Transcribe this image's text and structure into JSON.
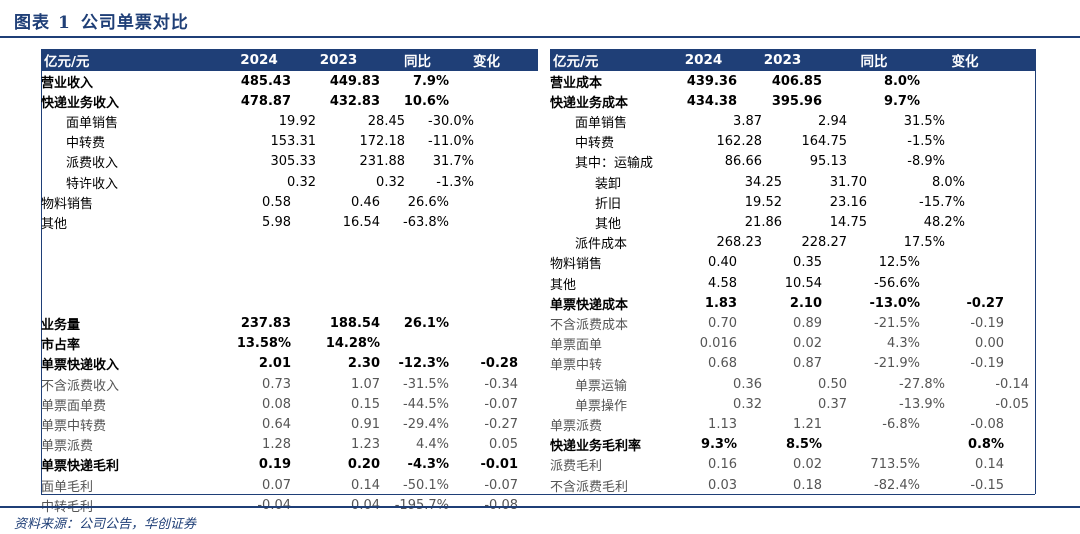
{
  "title": {
    "chart_no": "图表",
    "num": "1",
    "text": "公司单票对比"
  },
  "header_left": [
    "亿元/元",
    "2024",
    "2023",
    "同比",
    "变化"
  ],
  "header_right": [
    "亿元/元",
    "2024",
    "2023",
    "同比",
    "变化"
  ],
  "left_rows": [
    {
      "label": "营业收入",
      "v2024": "485.43",
      "v2023": "449.83",
      "yoy": "7.9%",
      "chg": "",
      "style": "b"
    },
    {
      "label": "快递业务收入",
      "v2024": "478.87",
      "v2023": "432.83",
      "yoy": "10.6%",
      "chg": "",
      "style": "b"
    },
    {
      "label": "面单销售",
      "v2024": "19.92",
      "v2023": "28.45",
      "yoy": "-30.0%",
      "chg": "",
      "style": "i1"
    },
    {
      "label": "中转费",
      "v2024": "153.31",
      "v2023": "172.18",
      "yoy": "-11.0%",
      "chg": "",
      "style": "i1"
    },
    {
      "label": "派费收入",
      "v2024": "305.33",
      "v2023": "231.88",
      "yoy": "31.7%",
      "chg": "",
      "style": "i1"
    },
    {
      "label": "特许收入",
      "v2024": "0.32",
      "v2023": "0.32",
      "yoy": "-1.3%",
      "chg": "",
      "style": "i1"
    },
    {
      "label": "物料销售",
      "v2024": "0.58",
      "v2023": "0.46",
      "yoy": "26.6%",
      "chg": "",
      "style": ""
    },
    {
      "label": "其他",
      "v2024": "5.98",
      "v2023": "16.54",
      "yoy": "-63.8%",
      "chg": "",
      "style": ""
    },
    {
      "label": "",
      "v2024": "",
      "v2023": "",
      "yoy": "",
      "chg": "",
      "style": ""
    },
    {
      "label": "",
      "v2024": "",
      "v2023": "",
      "yoy": "",
      "chg": "",
      "style": ""
    },
    {
      "label": "",
      "v2024": "",
      "v2023": "",
      "yoy": "",
      "chg": "",
      "style": ""
    },
    {
      "label": "",
      "v2024": "",
      "v2023": "",
      "yoy": "",
      "chg": "",
      "style": ""
    },
    {
      "label": "业务量",
      "v2024": "237.83",
      "v2023": "188.54",
      "yoy": "26.1%",
      "chg": "",
      "style": "b"
    },
    {
      "label": "市占率",
      "v2024": "13.58%",
      "v2023": "14.28%",
      "yoy": "",
      "chg": "",
      "style": "b"
    },
    {
      "label": "单票快递收入",
      "v2024": "2.01",
      "v2023": "2.30",
      "yoy": "-12.3%",
      "chg": "-0.28",
      "style": "b"
    },
    {
      "label": "不含派费收入",
      "v2024": "0.73",
      "v2023": "1.07",
      "yoy": "-31.5%",
      "chg": "-0.34",
      "style": "g"
    },
    {
      "label": "单票面单费",
      "v2024": "0.08",
      "v2023": "0.15",
      "yoy": "-44.5%",
      "chg": "-0.07",
      "style": "g"
    },
    {
      "label": "单票中转费",
      "v2024": "0.64",
      "v2023": "0.91",
      "yoy": "-29.4%",
      "chg": "-0.27",
      "style": "g"
    },
    {
      "label": "单票派费",
      "v2024": "1.28",
      "v2023": "1.23",
      "yoy": "4.4%",
      "chg": "0.05",
      "style": "g"
    },
    {
      "label": "单票快递毛利",
      "v2024": "0.19",
      "v2023": "0.20",
      "yoy": "-4.3%",
      "chg": "-0.01",
      "style": "b"
    },
    {
      "label": "面单毛利",
      "v2024": "0.07",
      "v2023": "0.14",
      "yoy": "-50.1%",
      "chg": "-0.07",
      "style": "g"
    },
    {
      "label": "中转毛利",
      "v2024": "-0.04",
      "v2023": "0.04",
      "yoy": "-195.7%",
      "chg": "-0.08",
      "style": "g"
    }
  ],
  "right_rows": [
    {
      "label": "营业成本",
      "v2024": "439.36",
      "v2023": "406.85",
      "yoy": "8.0%",
      "chg": "",
      "style": "b"
    },
    {
      "label": "快递业务成本",
      "v2024": "434.38",
      "v2023": "395.96",
      "yoy": "9.7%",
      "chg": "",
      "style": "b"
    },
    {
      "label": "面单销售",
      "v2024": "3.87",
      "v2023": "2.94",
      "yoy": "31.5%",
      "chg": "",
      "style": "i1"
    },
    {
      "label": "中转费",
      "v2024": "162.28",
      "v2023": "164.75",
      "yoy": "-1.5%",
      "chg": "",
      "style": "i1"
    },
    {
      "label": "其中：运输成",
      "v2024": "86.66",
      "v2023": "95.13",
      "yoy": "-8.9%",
      "chg": "",
      "style": "i1"
    },
    {
      "label": "装卸",
      "v2024": "34.25",
      "v2023": "31.70",
      "yoy": "8.0%",
      "chg": "",
      "style": "i2"
    },
    {
      "label": "折旧",
      "v2024": "19.52",
      "v2023": "23.16",
      "yoy": "-15.7%",
      "chg": "",
      "style": "i2"
    },
    {
      "label": "其他",
      "v2024": "21.86",
      "v2023": "14.75",
      "yoy": "48.2%",
      "chg": "",
      "style": "i2"
    },
    {
      "label": "派件成本",
      "v2024": "268.23",
      "v2023": "228.27",
      "yoy": "17.5%",
      "chg": "",
      "style": "i1"
    },
    {
      "label": "物料销售",
      "v2024": "0.40",
      "v2023": "0.35",
      "yoy": "12.5%",
      "chg": "",
      "style": ""
    },
    {
      "label": "其他",
      "v2024": "4.58",
      "v2023": "10.54",
      "yoy": "-56.6%",
      "chg": "",
      "style": ""
    },
    {
      "label": "单票快递成本",
      "v2024": "1.83",
      "v2023": "2.10",
      "yoy": "-13.0%",
      "chg": "-0.27",
      "style": "b"
    },
    {
      "label": "不含派费成本",
      "v2024": "0.70",
      "v2023": "0.89",
      "yoy": "-21.5%",
      "chg": "-0.19",
      "style": "g"
    },
    {
      "label": "单票面单",
      "v2024": "0.016",
      "v2023": "0.02",
      "yoy": "4.3%",
      "chg": "0.00",
      "style": "g"
    },
    {
      "label": "单票中转",
      "v2024": "0.68",
      "v2023": "0.87",
      "yoy": "-21.9%",
      "chg": "-0.19",
      "style": "g"
    },
    {
      "label": "单票运输",
      "v2024": "0.36",
      "v2023": "0.50",
      "yoy": "-27.8%",
      "chg": "-0.14",
      "style": "g i1"
    },
    {
      "label": "单票操作",
      "v2024": "0.32",
      "v2023": "0.37",
      "yoy": "-13.9%",
      "chg": "-0.05",
      "style": "g i1"
    },
    {
      "label": "单票派费",
      "v2024": "1.13",
      "v2023": "1.21",
      "yoy": "-6.8%",
      "chg": "-0.08",
      "style": "g"
    },
    {
      "label": "快递业务毛利率",
      "v2024": "9.3%",
      "v2023": "8.5%",
      "yoy": "",
      "chg": "0.8%",
      "style": "b"
    },
    {
      "label": "派费毛利",
      "v2024": "0.16",
      "v2023": "0.02",
      "yoy": "713.5%",
      "chg": "0.14",
      "style": "g"
    },
    {
      "label": "不含派费毛利",
      "v2024": "0.03",
      "v2023": "0.18",
      "yoy": "-82.4%",
      "chg": "-0.15",
      "style": "g"
    }
  ],
  "source": "资料来源：公司公告，华创证券"
}
